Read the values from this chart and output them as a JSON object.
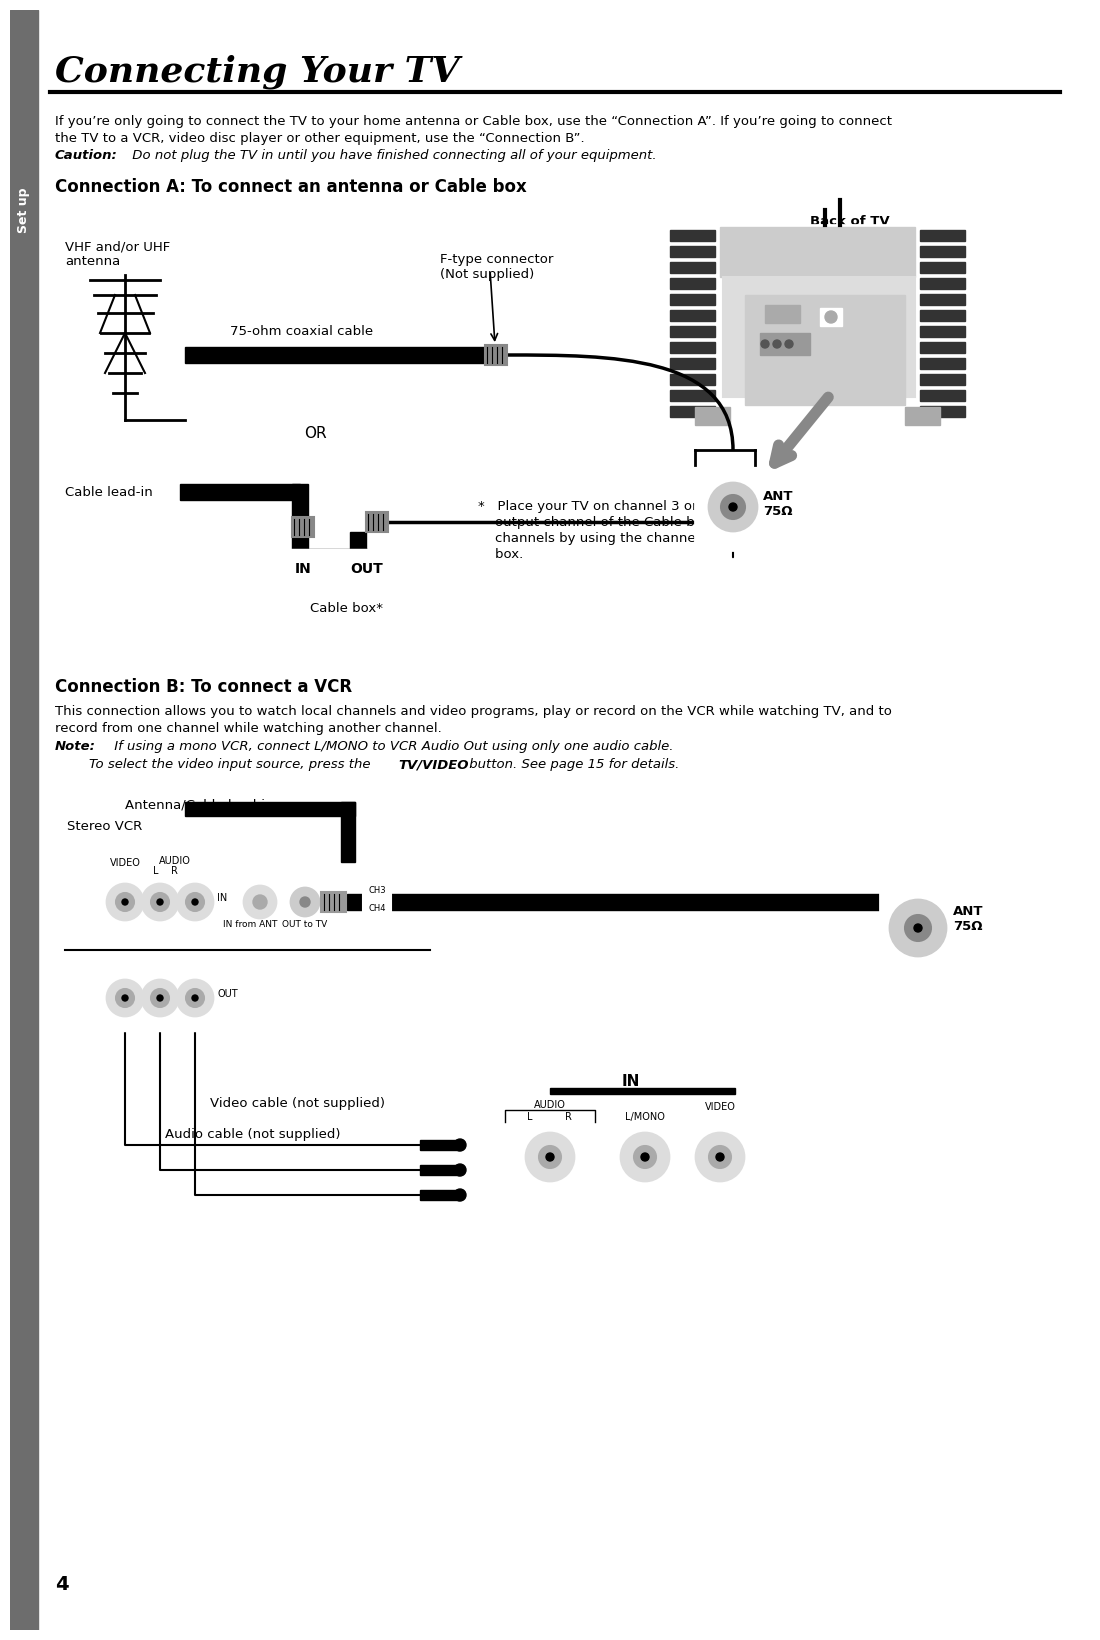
{
  "title": "Connecting Your TV",
  "sidebar_text": "Set up",
  "sidebar_bg": "#6d6d6d",
  "page_number": "4",
  "bg_color": "#ffffff",
  "intro_line1": "If you’re only going to connect the TV to your home antenna or Cable box, use the “Connection A”. If you’re going to connect",
  "intro_line2": "the TV to a VCR, video disc player or other equipment, use the “Connection B”.",
  "caution_bold": "Caution:",
  "caution_italic": " Do not plug the TV in until you have finished connecting all of your equipment.",
  "section_a_title": "Connection A: To connect an antenna or Cable box",
  "back_of_tv": "Back of TV",
  "vhf_label": "VHF and/or UHF\nantenna",
  "ftype_label": "F-type connector\n(Not supplied)",
  "coax_label": "75-ohm coaxial cable",
  "or_label": "OR",
  "cable_lead_label": "Cable lead-in",
  "ant_label": "ANT\n75Ω",
  "in_label": "IN",
  "out_label": "OUT",
  "cable_box_label": "Cable box*",
  "asterisk_note_line1": "*   Place your TV on channel 3 or 4 to match the",
  "asterisk_note_line2": "    output channel of the Cable box, then select",
  "asterisk_note_line3": "    channels by using the channel keys of the Cable",
  "asterisk_note_line4": "    box.",
  "section_b_title": "Connection B: To connect a VCR",
  "section_b_line1": "This connection allows you to watch local channels and video programs, play or record on the VCR while watching TV, and to",
  "section_b_line2": "record from one channel while watching another channel.",
  "note_bold": "Note:",
  "note_italic": " If using a mono VCR, connect L/MONO to VCR Audio Out using only one audio cable.",
  "note2_pre": "        To select the video input source, press the ",
  "note2_bold": "TV/VIDEO",
  "note2_post": " button. See page 15 for details.",
  "ant_cable_label": "Antenna/Cable lead-in",
  "stereo_vcr_label": "Stereo VCR",
  "video_out_label": "VIDEO",
  "audio_out_label": "AUDIO",
  "audio_lr": "L    R",
  "in_from_ant": "IN from ANT",
  "out_to_tv": "OUT to TV",
  "ch3_label": "CH3",
  "ch4_label": "CH4",
  "in_vcr": "IN",
  "out_vcr": "OUT",
  "video_cable_label": "Video cable (not supplied)",
  "audio_cable_label": "Audio cable (not supplied)",
  "in_panel_label": "IN",
  "audio_panel": "AUDIO",
  "audio_l": "L",
  "audio_r": "R",
  "lmono_label": "L/MONO",
  "video_panel": "VIDEO"
}
